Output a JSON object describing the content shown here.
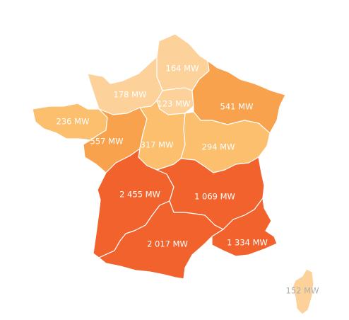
{
  "map": {
    "regions": [
      {
        "id": "hauts-de-france",
        "value_mw": 164,
        "label": "164 MW",
        "fill": "#FCD29A"
      },
      {
        "id": "normandie",
        "value_mw": 178,
        "label": "178 MW",
        "fill": "#FCD29A"
      },
      {
        "id": "ile-de-france",
        "value_mw": 123,
        "label": "123 MW",
        "fill": "#FCD29A"
      },
      {
        "id": "grand-est",
        "value_mw": 541,
        "label": "541 MW",
        "fill": "#F8A24E"
      },
      {
        "id": "bretagne",
        "value_mw": 236,
        "label": "236 MW",
        "fill": "#FBBF6D"
      },
      {
        "id": "pays-de-la-loire",
        "value_mw": 557,
        "label": "557 MW",
        "fill": "#F8A24E"
      },
      {
        "id": "centre-val-de-loire",
        "value_mw": 317,
        "label": "317 MW",
        "fill": "#FBBF6D"
      },
      {
        "id": "bourgogne-franche-comte",
        "value_mw": 294,
        "label": "294 MW",
        "fill": "#FBBF6D"
      },
      {
        "id": "nouvelle-aquitaine",
        "value_mw": 2455,
        "label": "2 455 MW",
        "fill": "#F2622D"
      },
      {
        "id": "auvergne-rhone-alpes",
        "value_mw": 1069,
        "label": "1 069 MW",
        "fill": "#F2622D"
      },
      {
        "id": "occitanie",
        "value_mw": 2017,
        "label": "2 017 MW",
        "fill": "#F2622D"
      },
      {
        "id": "provence-alpes-cote-dazur",
        "value_mw": 1334,
        "label": "1 334 MW",
        "fill": "#F2622D"
      },
      {
        "id": "corse",
        "value_mw": 152,
        "label": "152 MW",
        "fill": "#FCD29A"
      }
    ]
  }
}
